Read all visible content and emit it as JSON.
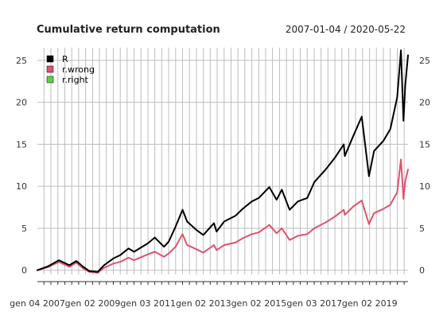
{
  "chart_data": {
    "type": "line",
    "title": "Cumulative return computation",
    "date_range": "2007-01-04 / 2020-05-22",
    "xlabel": "",
    "ylabel": "",
    "x_ticks": [
      {
        "label": "gen 04 2007",
        "date": "2007-01-04"
      },
      {
        "label": "gen 02 2009",
        "date": "2009-01-02"
      },
      {
        "label": "gen 03 2011",
        "date": "2011-01-03"
      },
      {
        "label": "gen 02 2013",
        "date": "2013-01-02"
      },
      {
        "label": "gen 02 2015",
        "date": "2015-01-02"
      },
      {
        "label": "gen 03 2017",
        "date": "2017-01-03"
      },
      {
        "label": "gen 02 2019",
        "date": "2019-01-02"
      }
    ],
    "xlim": [
      "2007-01-04",
      "2020-05-22"
    ],
    "y_ticks": [
      0,
      5,
      10,
      15,
      20,
      25
    ],
    "ylim": [
      -0.5,
      26.5
    ],
    "grid": true,
    "legend_position": "top-left",
    "series": [
      {
        "name": "R",
        "color": "#000000",
        "x": [
          "2007-01-04",
          "2007-06-01",
          "2007-10-15",
          "2008-03-01",
          "2008-06-01",
          "2008-09-01",
          "2008-11-20",
          "2009-03-09",
          "2009-06-01",
          "2009-10-01",
          "2010-01-01",
          "2010-04-20",
          "2010-07-01",
          "2010-12-31",
          "2011-04-01",
          "2011-08-01",
          "2011-10-01",
          "2012-01-01",
          "2012-04-01",
          "2012-06-01",
          "2012-10-01",
          "2012-12-31",
          "2013-05-20",
          "2013-06-24",
          "2013-10-01",
          "2014-03-01",
          "2014-06-01",
          "2014-10-01",
          "2015-01-01",
          "2015-05-20",
          "2015-08-25",
          "2015-11-01",
          "2016-02-11",
          "2016-06-01",
          "2016-10-01",
          "2017-01-03",
          "2017-06-01",
          "2017-10-01",
          "2018-01-26",
          "2018-02-08",
          "2018-06-01",
          "2018-09-20",
          "2018-12-24",
          "2019-03-01",
          "2019-07-01",
          "2019-10-01",
          "2019-12-31",
          "2020-02-19",
          "2020-03-23",
          "2020-04-15",
          "2020-05-22"
        ],
        "values": [
          0.0,
          0.5,
          1.2,
          0.6,
          1.1,
          0.4,
          -0.1,
          -0.2,
          0.6,
          1.4,
          1.8,
          2.6,
          2.2,
          3.2,
          3.9,
          2.8,
          3.4,
          5.2,
          7.2,
          5.8,
          4.8,
          4.2,
          5.6,
          4.6,
          5.8,
          6.5,
          7.3,
          8.2,
          8.6,
          9.9,
          8.4,
          9.6,
          7.2,
          8.2,
          8.6,
          10.5,
          12.0,
          13.4,
          15.0,
          13.6,
          16.0,
          18.3,
          11.2,
          14.2,
          15.4,
          16.8,
          20.6,
          26.2,
          17.8,
          22.0,
          25.6
        ]
      },
      {
        "name": "r.wrong",
        "color": "#DF536B",
        "x": [
          "2007-01-04",
          "2007-06-01",
          "2007-10-15",
          "2008-03-01",
          "2008-06-01",
          "2008-09-01",
          "2008-11-20",
          "2009-03-09",
          "2009-06-01",
          "2009-10-01",
          "2010-01-01",
          "2010-04-20",
          "2010-07-01",
          "2010-12-31",
          "2011-04-01",
          "2011-08-01",
          "2011-10-01",
          "2012-01-01",
          "2012-04-01",
          "2012-06-01",
          "2012-10-01",
          "2012-12-31",
          "2013-05-20",
          "2013-06-24",
          "2013-10-01",
          "2014-03-01",
          "2014-06-01",
          "2014-10-01",
          "2015-01-01",
          "2015-05-20",
          "2015-08-25",
          "2015-11-01",
          "2016-02-11",
          "2016-06-01",
          "2016-10-01",
          "2017-01-03",
          "2017-06-01",
          "2017-10-01",
          "2018-01-26",
          "2018-02-08",
          "2018-06-01",
          "2018-09-20",
          "2018-12-24",
          "2019-03-01",
          "2019-07-01",
          "2019-10-01",
          "2019-12-31",
          "2020-02-19",
          "2020-03-23",
          "2020-04-15",
          "2020-05-22"
        ],
        "values": [
          0.0,
          0.4,
          1.0,
          0.4,
          0.9,
          0.2,
          -0.2,
          -0.3,
          0.3,
          0.8,
          1.0,
          1.5,
          1.2,
          1.9,
          2.2,
          1.6,
          2.0,
          2.8,
          4.3,
          3.0,
          2.5,
          2.1,
          3.0,
          2.4,
          3.0,
          3.3,
          3.8,
          4.3,
          4.5,
          5.4,
          4.4,
          5.0,
          3.6,
          4.1,
          4.3,
          5.0,
          5.7,
          6.4,
          7.2,
          6.6,
          7.6,
          8.3,
          5.5,
          6.8,
          7.3,
          7.8,
          9.3,
          13.2,
          8.5,
          10.6,
          12.0
        ]
      },
      {
        "name": "r.right",
        "color": "#61D04F"
      }
    ]
  }
}
